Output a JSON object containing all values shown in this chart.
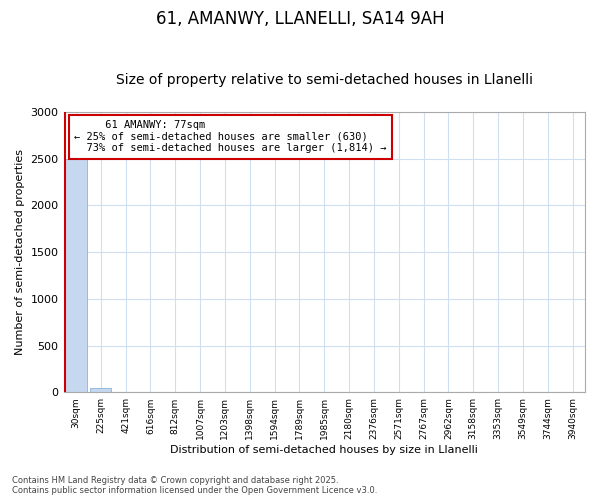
{
  "title1": "61, AMANWY, LLANELLI, SA14 9AH",
  "title2": "Size of property relative to semi-detached houses in Llanelli",
  "xlabel": "Distribution of semi-detached houses by size in Llanelli",
  "ylabel": "Number of semi-detached properties",
  "categories": [
    "30sqm",
    "225sqm",
    "421sqm",
    "616sqm",
    "812sqm",
    "1007sqm",
    "1203sqm",
    "1398sqm",
    "1594sqm",
    "1789sqm",
    "1985sqm",
    "2180sqm",
    "2376sqm",
    "2571sqm",
    "2767sqm",
    "2962sqm",
    "3158sqm",
    "3353sqm",
    "3549sqm",
    "3744sqm",
    "3940sqm"
  ],
  "values": [
    2500,
    50,
    8,
    3,
    2,
    1,
    1,
    1,
    1,
    0,
    0,
    0,
    0,
    0,
    0,
    0,
    0,
    0,
    0,
    0,
    0
  ],
  "bar_color": "#c5d8f0",
  "bar_edge_color": "#8ab4d8",
  "subject_label": "61 AMANWY: 77sqm",
  "pct_smaller": 25,
  "count_smaller": 630,
  "pct_larger": 73,
  "count_larger": 1814,
  "annotation_box_color": "#ffffff",
  "annotation_box_edge_color": "#cc0000",
  "vline_color": "#cc0000",
  "footer1": "Contains HM Land Registry data © Crown copyright and database right 2025.",
  "footer2": "Contains public sector information licensed under the Open Government Licence v3.0.",
  "ylim": [
    0,
    3000
  ],
  "yticks": [
    0,
    500,
    1000,
    1500,
    2000,
    2500,
    3000
  ],
  "title1_fontsize": 12,
  "title2_fontsize": 10,
  "bg_color": "#ffffff",
  "plot_bg_color": "#ffffff",
  "grid_color": "#d0dff0"
}
